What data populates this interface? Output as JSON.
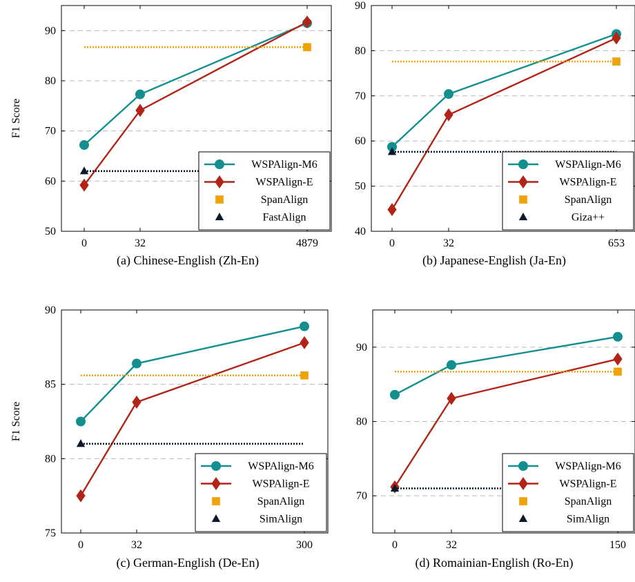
{
  "figure": {
    "ylabel": "F1 Score"
  },
  "colors": {
    "WSPAlign-M6": "#138f8f",
    "WSPAlign-E": "#b22417",
    "SpanAlign": "#f0a20a",
    "baseline": "#0a1a2a",
    "grid": "#b8b8b8"
  },
  "chart_data": [
    {
      "type": "line",
      "caption": "(a) Chinese-English (Zh-En)",
      "ylabel": "F1 Score",
      "x_ticks": [
        "0",
        "32",
        "4879"
      ],
      "ylim": [
        50,
        95
      ],
      "y_ticks": [
        50,
        60,
        70,
        80,
        90
      ],
      "grid": "horizontal dashed",
      "legend_position": "bottom-right",
      "series": [
        {
          "name": "WSPAlign-M6",
          "marker": "circle",
          "x": [
            "0",
            "32",
            "4879"
          ],
          "values": [
            67.2,
            77.3,
            91.5
          ]
        },
        {
          "name": "WSPAlign-E",
          "marker": "diamond",
          "x": [
            "0",
            "32",
            "4879"
          ],
          "values": [
            59.2,
            74.1,
            91.7
          ]
        },
        {
          "name": "SpanAlign",
          "marker": "square",
          "style": "dotted",
          "x": [
            "0",
            "4879"
          ],
          "values": [
            86.7,
            86.7
          ]
        },
        {
          "name": "FastAlign",
          "marker": "triangle",
          "style": "dotted",
          "x": [
            "0",
            "4879"
          ],
          "values": [
            62.0,
            62.0
          ]
        }
      ]
    },
    {
      "type": "line",
      "caption": "(b) Japanese-English (Ja-En)",
      "ylabel": "",
      "x_ticks": [
        "0",
        "32",
        "653"
      ],
      "ylim": [
        40,
        90
      ],
      "y_ticks": [
        40,
        50,
        60,
        70,
        80,
        90
      ],
      "grid": "horizontal dashed",
      "legend_position": "bottom-right",
      "series": [
        {
          "name": "WSPAlign-M6",
          "marker": "circle",
          "x": [
            "0",
            "32",
            "653"
          ],
          "values": [
            58.7,
            70.4,
            83.7
          ]
        },
        {
          "name": "WSPAlign-E",
          "marker": "diamond",
          "x": [
            "0",
            "32",
            "653"
          ],
          "values": [
            44.8,
            65.8,
            82.8
          ]
        },
        {
          "name": "SpanAlign",
          "marker": "square",
          "style": "dotted",
          "x": [
            "0",
            "653"
          ],
          "values": [
            77.6,
            77.6
          ]
        },
        {
          "name": "Giza++",
          "marker": "triangle",
          "style": "dotted",
          "x": [
            "0",
            "653"
          ],
          "values": [
            57.6,
            57.6
          ]
        }
      ]
    },
    {
      "type": "line",
      "caption": "(c) German-English (De-En)",
      "ylabel": "F1 Score",
      "x_ticks": [
        "0",
        "32",
        "300"
      ],
      "ylim": [
        75,
        90
      ],
      "y_ticks": [
        75,
        80,
        85,
        90
      ],
      "grid": "horizontal dashed",
      "legend_position": "bottom-right",
      "series": [
        {
          "name": "WSPAlign-M6",
          "marker": "circle",
          "x": [
            "0",
            "32",
            "300"
          ],
          "values": [
            82.5,
            86.4,
            88.9
          ]
        },
        {
          "name": "WSPAlign-E",
          "marker": "diamond",
          "x": [
            "0",
            "32",
            "300"
          ],
          "values": [
            77.5,
            83.8,
            87.8
          ]
        },
        {
          "name": "SpanAlign",
          "marker": "square",
          "style": "dotted",
          "x": [
            "0",
            "300"
          ],
          "values": [
            85.6,
            85.6
          ]
        },
        {
          "name": "SimAlign",
          "marker": "triangle",
          "style": "dotted",
          "x": [
            "0",
            "300"
          ],
          "values": [
            81.0,
            81.0
          ]
        }
      ]
    },
    {
      "type": "line",
      "caption": "(d) Romainian-English (Ro-En)",
      "ylabel": "",
      "x_ticks": [
        "0",
        "32",
        "150"
      ],
      "ylim": [
        65,
        95
      ],
      "y_ticks": [
        70,
        80,
        90
      ],
      "grid": "horizontal dashed",
      "legend_position": "bottom-right",
      "series": [
        {
          "name": "WSPAlign-M6",
          "marker": "circle",
          "x": [
            "0",
            "32",
            "150"
          ],
          "values": [
            83.6,
            87.6,
            91.4
          ]
        },
        {
          "name": "WSPAlign-E",
          "marker": "diamond",
          "x": [
            "0",
            "32",
            "150"
          ],
          "values": [
            71.2,
            83.1,
            88.4
          ]
        },
        {
          "name": "SpanAlign",
          "marker": "square",
          "style": "dotted",
          "x": [
            "0",
            "150"
          ],
          "values": [
            86.7,
            86.7
          ]
        },
        {
          "name": "SimAlign",
          "marker": "triangle",
          "style": "dotted",
          "x": [
            "0",
            "150"
          ],
          "values": [
            71.0,
            71.0
          ]
        }
      ]
    }
  ]
}
